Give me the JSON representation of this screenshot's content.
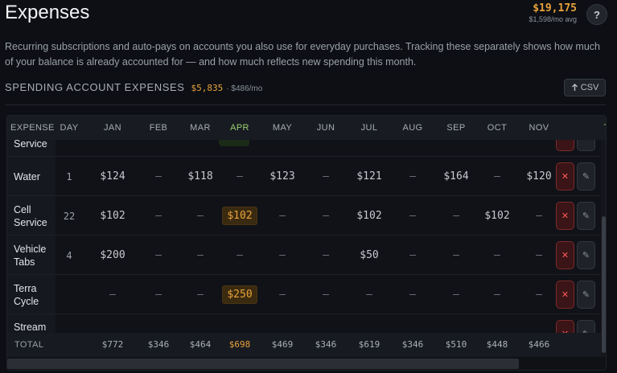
{
  "header": {
    "title": "Expenses",
    "total": "$19,175",
    "total_avg": "$1,598/mo avg",
    "help_label": "?"
  },
  "description": "Recurring subscriptions and auto-pays on accounts you also use for everyday purchases. Tracking these separately shows how much of your balance is already accounted for — and how much reflects new spending this month.",
  "section": {
    "title": "SPENDING ACCOUNT EXPENSES",
    "amount": "$5,835",
    "sub": "· $486/mo",
    "csv_label": "CSV",
    "csv_icon": "upload-arrow-icon"
  },
  "table": {
    "columns": [
      "EXPENSE",
      "DAY",
      "JAN",
      "FEB",
      "MAR",
      "APR",
      "MAY",
      "JUN",
      "JUL",
      "AUG",
      "SEP",
      "OCT",
      "NOV",
      "T"
    ],
    "rows": [
      {
        "name": "Service",
        "day": "",
        "months": [
          "",
          "",
          "",
          "",
          "",
          "",
          "",
          "",
          "",
          "",
          ""
        ],
        "partial": true
      },
      {
        "name": "Water",
        "day": "1",
        "months": [
          "$124",
          "—",
          "$118",
          "—",
          "$123",
          "—",
          "$121",
          "—",
          "$164",
          "—",
          "$120"
        ]
      },
      {
        "name": "Cell Service",
        "day": "22",
        "months": [
          "$102",
          "—",
          "—",
          "$102",
          "—",
          "—",
          "$102",
          "—",
          "—",
          "$102",
          "—"
        ]
      },
      {
        "name": "Vehicle Tabs",
        "day": "4",
        "months": [
          "$200",
          "—",
          "—",
          "—",
          "—",
          "—",
          "$50",
          "—",
          "—",
          "—",
          "—"
        ]
      },
      {
        "name": "Terra Cycle",
        "day": "",
        "months": [
          "—",
          "—",
          "—",
          "$250",
          "—",
          "—",
          "—",
          "—",
          "—",
          "—",
          "—"
        ]
      },
      {
        "name": "Stream",
        "day": "",
        "months": [
          "",
          "",
          "",
          "",
          "",
          "",
          "",
          "",
          "",
          "",
          ""
        ],
        "partial": true
      }
    ],
    "totals": {
      "label": "TOTAL",
      "values": [
        "$772",
        "$346",
        "$464",
        "$698",
        "$469",
        "$346",
        "$619",
        "$346",
        "$510",
        "$448",
        "$466"
      ]
    },
    "delete_icon": "close-icon",
    "edit_icon": "pencil-icon",
    "highlight_month": "APR",
    "accent_color": "#e8a23a",
    "current_month_color": "#9bcf6e"
  }
}
